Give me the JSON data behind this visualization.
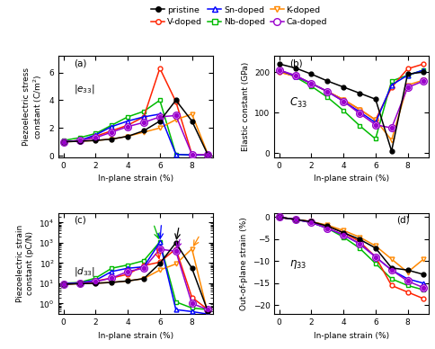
{
  "colors": {
    "pristine": "#000000",
    "Nb-doped": "#00bb00",
    "V-doped": "#ff2200",
    "K-doped": "#ff8800",
    "Sn-doped": "#0000ff",
    "Ca-doped": "#9900cc"
  },
  "markers": {
    "pristine": "o",
    "Nb-doped": "s",
    "V-doped": "o",
    "K-doped": "v",
    "Sn-doped": "^",
    "Ca-doped": "o"
  },
  "e33": {
    "x": [
      0,
      1,
      2,
      3,
      4,
      5,
      6,
      7,
      8,
      9
    ],
    "pristine": [
      1.0,
      1.05,
      1.1,
      1.2,
      1.4,
      1.8,
      2.5,
      4.0,
      2.5,
      0.05
    ],
    "Nb-doped": [
      1.1,
      1.3,
      1.6,
      2.2,
      2.8,
      3.2,
      4.0,
      0.1,
      0.05,
      0.05
    ],
    "V-doped": [
      1.0,
      1.1,
      1.4,
      1.8,
      2.2,
      2.8,
      6.3,
      3.9,
      0.1,
      0.05
    ],
    "K-doped": [
      1.0,
      1.05,
      1.1,
      1.2,
      1.4,
      1.7,
      2.0,
      2.6,
      3.0,
      0.1
    ],
    "Sn-doped": [
      1.0,
      1.1,
      1.5,
      2.1,
      2.5,
      2.8,
      3.0,
      0.1,
      0.05,
      0.05
    ],
    "Ca-doped": [
      1.0,
      1.1,
      1.3,
      1.7,
      2.1,
      2.4,
      2.8,
      2.9,
      0.1,
      0.05
    ]
  },
  "C33": {
    "x": [
      0,
      1,
      2,
      3,
      4,
      5,
      6,
      7,
      8,
      9
    ],
    "pristine": [
      220,
      210,
      195,
      178,
      163,
      148,
      133,
      5,
      195,
      200
    ],
    "Nb-doped": [
      205,
      188,
      165,
      138,
      105,
      68,
      35,
      178,
      192,
      205
    ],
    "V-doped": [
      200,
      190,
      172,
      152,
      132,
      108,
      82,
      162,
      208,
      220
    ],
    "K-doped": [
      200,
      190,
      172,
      152,
      132,
      108,
      82,
      32,
      168,
      180
    ],
    "Sn-doped": [
      205,
      190,
      172,
      152,
      128,
      102,
      75,
      168,
      192,
      205
    ],
    "Ca-doped": [
      205,
      192,
      172,
      152,
      128,
      98,
      70,
      62,
      162,
      178
    ]
  },
  "d33": {
    "x": [
      0,
      1,
      2,
      3,
      4,
      5,
      6,
      7,
      8,
      9
    ],
    "pristine": [
      9.0,
      9.5,
      10.0,
      11.0,
      13.0,
      17.0,
      95.0,
      1000.0,
      55.0,
      0.4
    ],
    "Nb-doped": [
      10.0,
      11.0,
      18.0,
      55.0,
      80.0,
      130.0,
      1100.0,
      1.2,
      0.6,
      0.5
    ],
    "V-doped": [
      9.0,
      10.0,
      13.0,
      18.0,
      28.0,
      75.0,
      110.0,
      500.0,
      2.0,
      0.5
    ],
    "K-doped": [
      9.0,
      9.5,
      10.0,
      11.0,
      13.0,
      17.0,
      45.0,
      90.0,
      500.0,
      0.3
    ],
    "Sn-doped": [
      9.5,
      10.5,
      14.0,
      38.0,
      55.0,
      65.0,
      1050.0,
      0.5,
      0.4,
      0.3
    ],
    "Ca-doped": [
      9.0,
      10.0,
      12.0,
      18.0,
      38.0,
      55.0,
      480.0,
      380.0,
      1.0,
      0.5
    ]
  },
  "eta33": {
    "x": [
      0,
      1,
      2,
      3,
      4,
      5,
      6,
      7,
      8,
      9
    ],
    "pristine": [
      0.0,
      -0.5,
      -1.0,
      -2.0,
      -3.5,
      -5.0,
      -7.0,
      -11.5,
      -12.0,
      -13.0
    ],
    "Nb-doped": [
      0.0,
      -0.5,
      -1.2,
      -2.5,
      -4.5,
      -7.0,
      -10.5,
      -14.0,
      -15.5,
      -16.5
    ],
    "V-doped": [
      0.0,
      -0.5,
      -1.0,
      -2.0,
      -3.5,
      -5.5,
      -9.0,
      -15.5,
      -17.0,
      -18.5
    ],
    "K-doped": [
      0.0,
      -0.5,
      -1.0,
      -1.8,
      -3.0,
      -4.5,
      -6.5,
      -9.5,
      -12.5,
      -9.5
    ],
    "Sn-doped": [
      0.0,
      -0.5,
      -1.2,
      -2.5,
      -4.0,
      -6.0,
      -9.0,
      -12.0,
      -14.0,
      -15.0
    ],
    "Ca-doped": [
      0.0,
      -0.5,
      -1.2,
      -2.5,
      -4.0,
      -6.0,
      -9.0,
      -12.0,
      -14.5,
      -16.0
    ]
  },
  "legend_order": [
    "pristine",
    "V-doped",
    "Sn-doped",
    "Nb-doped",
    "K-doped",
    "Ca-doped"
  ]
}
